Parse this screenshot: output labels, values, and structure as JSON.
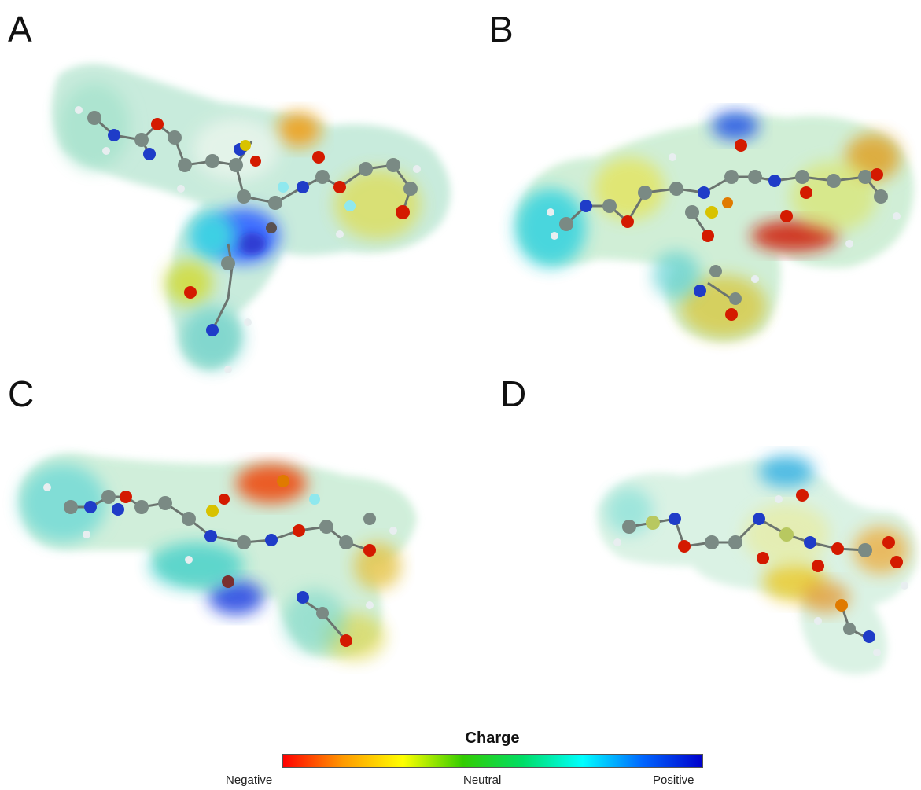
{
  "panels": [
    {
      "id": "A",
      "label": "A"
    },
    {
      "id": "B",
      "label": "B"
    },
    {
      "id": "C",
      "label": "C"
    },
    {
      "id": "D",
      "label": "D"
    }
  ],
  "legend": {
    "title": "Charge",
    "low_label": "Negative",
    "mid_label": "Neutral",
    "high_label": "Positive",
    "gradient_colors": [
      "#ff0000",
      "#ff9900",
      "#ffff00",
      "#33cc00",
      "#00dd66",
      "#00ffff",
      "#0066ff",
      "#0000cc"
    ]
  },
  "atom_colors": {
    "carbon": "#7a8a84",
    "hydrogen": "#e8eef0",
    "oxygen": "#d41a00",
    "nitrogen": "#1f3cc8",
    "sulfur": "#d8c200",
    "fluorine": "#8fe8ee"
  }
}
